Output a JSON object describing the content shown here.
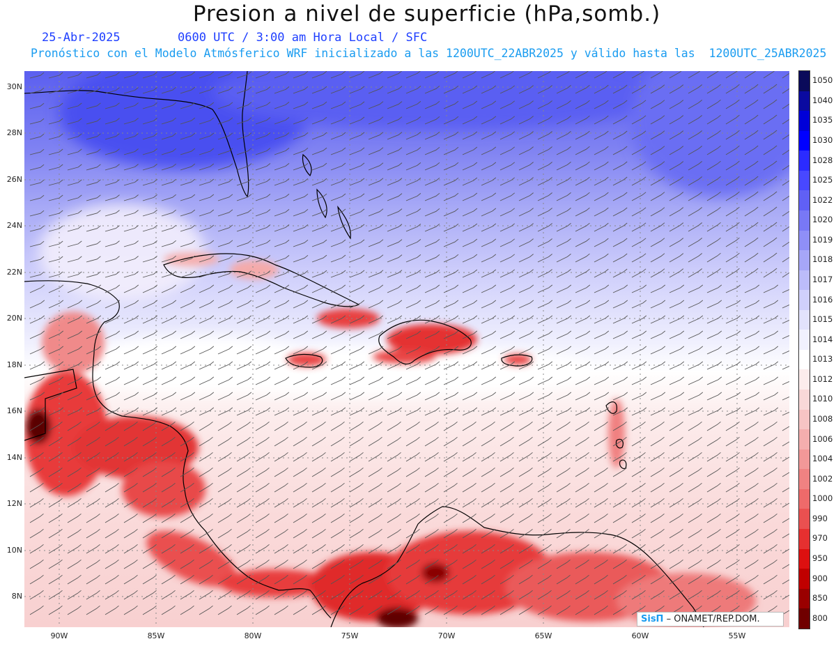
{
  "title": "Presion a nivel de superficie (hPa,somb.)",
  "date": "25-Abr-2025",
  "time": "0600 UTC / 3:00 am Hora Local / SFC",
  "forecast": "Pronóstico con el Modelo Atmósferico WRF inicializado a las 1200UTC_22ABR2025 y válido hasta las  1200UTC_25ABR2025",
  "lat_labels": [
    "30N",
    "28N",
    "26N",
    "24N",
    "22N",
    "20N",
    "18N",
    "16N",
    "14N",
    "12N",
    "10N",
    "8N"
  ],
  "lon_labels": [
    "90W",
    "85W",
    "80W",
    "75W",
    "70W",
    "65W",
    "60W",
    "55W"
  ],
  "colorbar": {
    "labels": [
      "1050",
      "1040",
      "1035",
      "1030",
      "1028",
      "1025",
      "1022",
      "1020",
      "1019",
      "1018",
      "1017",
      "1016",
      "1015",
      "1014",
      "1013",
      "1012",
      "1010",
      "1008",
      "1006",
      "1004",
      "1002",
      "1000",
      "990",
      "970",
      "950",
      "900",
      "850",
      "800"
    ],
    "colors": [
      "#0a0a5a",
      "#0a0aa0",
      "#0000d8",
      "#0000ff",
      "#2b2bff",
      "#4848ff",
      "#6060f5",
      "#7878f5",
      "#8f8ff7",
      "#a6a6f8",
      "#bcbcfa",
      "#d0d0fb",
      "#e2e2fc",
      "#f1f1fe",
      "#ffffff",
      "#fcecec",
      "#f9d8d8",
      "#f7c4c4",
      "#f4aeae",
      "#f29898",
      "#f08282",
      "#ee6a6a",
      "#ea5050",
      "#e63030",
      "#dd1010",
      "#c00000",
      "#9a0000",
      "#700000"
    ]
  },
  "credit": {
    "logo": "SisΠ",
    "text": "– ONAMET/REP.DOM."
  },
  "colors": {
    "title": "#111111",
    "date": "#1f3fff",
    "forecast": "#1a9cf0"
  }
}
